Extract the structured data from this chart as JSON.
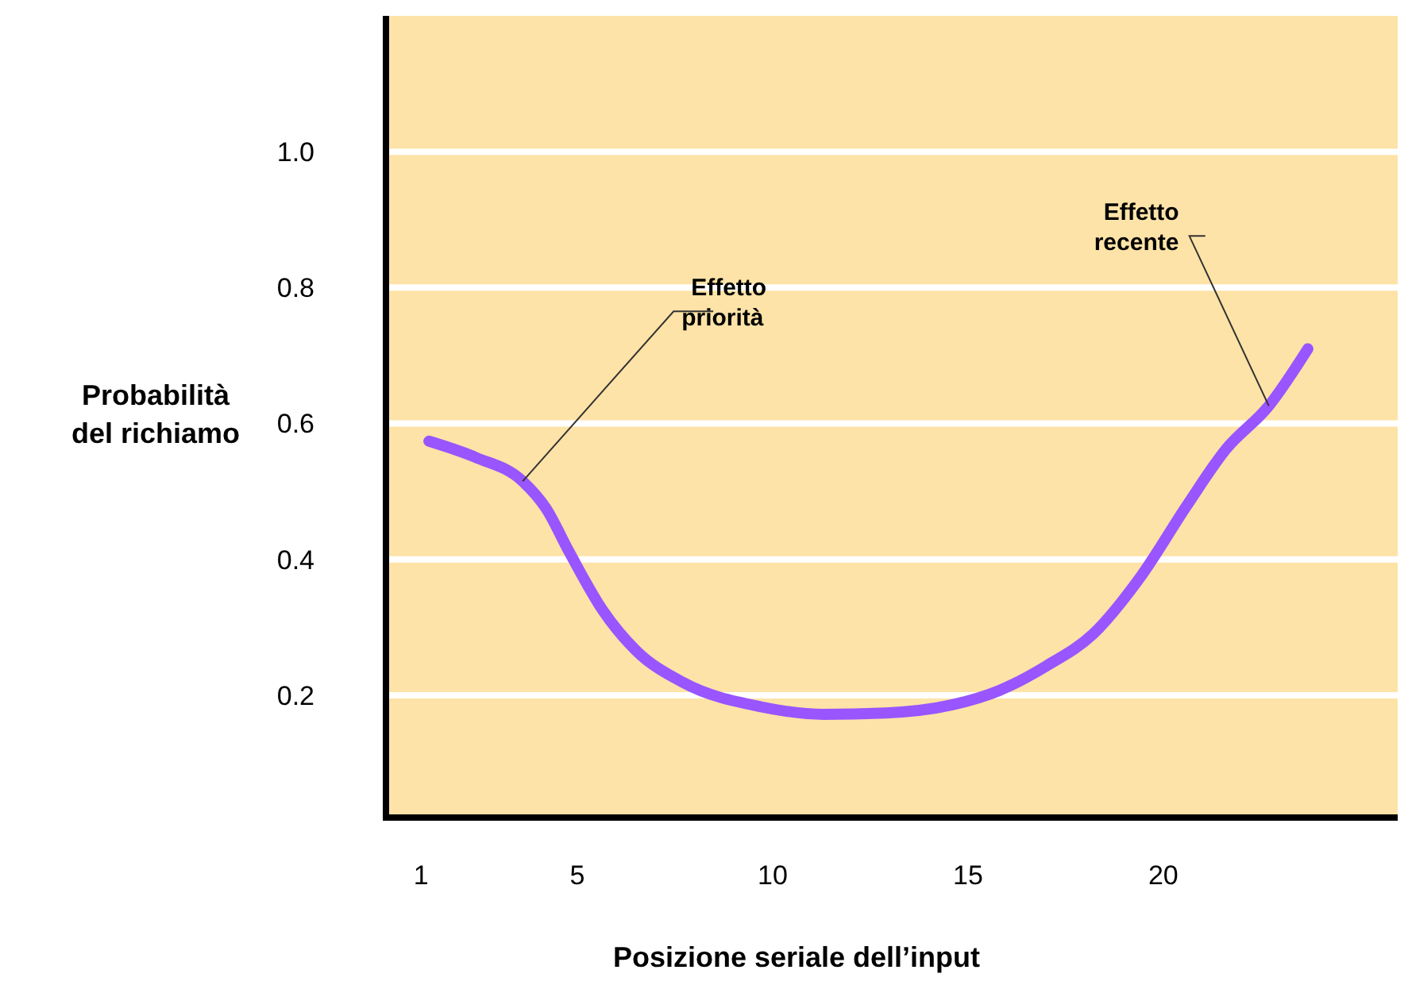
{
  "chart_data": {
    "type": "line",
    "xlabel": "Posizione seriale dell’input",
    "ylabel": "Probabilità del richiamo",
    "xlim": [
      0.1,
      26
    ],
    "ylim": [
      0.02,
      1.2
    ],
    "xticks": [
      1,
      5,
      10,
      15,
      20
    ],
    "yticks": [
      0.2,
      0.4,
      0.6,
      0.8,
      {
        "value": 1,
        "label": "1.0"
      }
    ],
    "grid": "y",
    "marker": "none",
    "line_style": "solid",
    "series": [
      {
        "color": "#9955ff",
        "x": [
          1.2,
          2.4,
          3.6,
          4.2,
          4.8,
          5.65,
          6.5,
          7.7,
          9.7,
          11.3,
          12.9,
          14.6,
          15.8,
          17,
          18.2,
          19.4,
          20.6,
          21.6,
          22.7,
          23.7
        ],
        "values": [
          0.574,
          0.55,
          0.515,
          0.475,
          0.41,
          0.325,
          0.266,
          0.219,
          0.183,
          0.172,
          0.174,
          0.186,
          0.207,
          0.243,
          0.29,
          0.373,
          0.479,
          0.562,
          0.626,
          0.71
        ]
      }
    ],
    "annotations": [
      {
        "text": "Effetto priorità",
        "x": 3.6,
        "y": 0.515
      },
      {
        "text": "Effetto recente",
        "x": 22.7,
        "y": 0.626
      }
    ]
  }
}
